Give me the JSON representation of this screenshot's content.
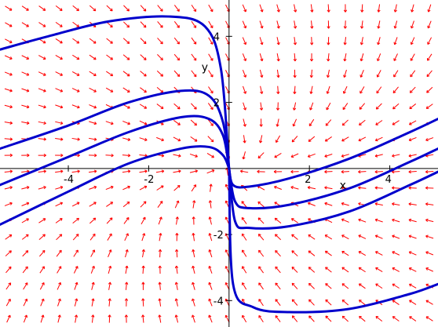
{
  "chart_data": {
    "type": "line",
    "title": "",
    "xlabel": "x",
    "ylabel": "y",
    "xlim": [
      -5.7,
      5.2
    ],
    "ylim": [
      -4.8,
      5.1
    ],
    "grid": false,
    "x_ticks": [
      -4,
      -2,
      2,
      4
    ],
    "y_ticks": [
      -4,
      -2,
      2,
      4
    ],
    "x_tick_labels": [
      "-4",
      "-2",
      "2",
      "4"
    ],
    "y_tick_labels": [
      "-4",
      "-2",
      "2",
      "4"
    ],
    "colors": {
      "field": "#ff0000",
      "curves": "#0000cc",
      "axes": "#000000"
    },
    "direction_field": {
      "description_source": "arrows on a regular grid",
      "columns": 26,
      "rows": 20
    },
    "series": [
      {
        "x": [
          -5.7,
          -4.5,
          -3,
          -1.5,
          -0.6,
          -0.2,
          0
        ],
        "y": [
          3.6,
          4.0,
          4.45,
          4.6,
          4.3,
          3.0,
          0
        ]
      },
      {
        "x": [
          -5.7,
          -4,
          -2.5,
          -1.2,
          -0.5,
          -0.15,
          0
        ],
        "y": [
          0.6,
          1.3,
          2.0,
          2.35,
          2.2,
          1.4,
          0
        ]
      },
      {
        "x": [
          -5.7,
          -4,
          -2.5,
          -1.2,
          -0.5,
          -0.15,
          0
        ],
        "y": [
          -0.5,
          0.35,
          1.1,
          1.55,
          1.5,
          1.0,
          0
        ]
      },
      {
        "x": [
          -5.7,
          -4,
          -2.5,
          -1.2,
          -0.5,
          -0.15,
          0
        ],
        "y": [
          -1.7,
          -0.7,
          0.15,
          0.6,
          0.65,
          0.4,
          0
        ]
      },
      {
        "x": [
          0,
          0.1,
          0.5,
          1.5,
          3,
          4.5,
          5.2
        ],
        "y": [
          0,
          -0.5,
          -0.55,
          -0.3,
          0.3,
          1.1,
          1.5
        ]
      },
      {
        "x": [
          0,
          0.15,
          0.5,
          1.5,
          3,
          4.5,
          5.2
        ],
        "y": [
          0,
          -1.0,
          -1.2,
          -1.1,
          -0.6,
          0.2,
          0.6
        ]
      },
      {
        "x": [
          0,
          0.15,
          0.5,
          1.5,
          3,
          4.5,
          5.2
        ],
        "y": [
          0,
          -1.6,
          -1.8,
          -1.75,
          -1.3,
          -0.5,
          -0.1
        ]
      },
      {
        "x": [
          0,
          0.1,
          0.6,
          1.5,
          3,
          4.5,
          5.2
        ],
        "y": [
          0,
          -3.5,
          -4.2,
          -4.35,
          -4.25,
          -3.8,
          -3.5
        ]
      }
    ]
  }
}
